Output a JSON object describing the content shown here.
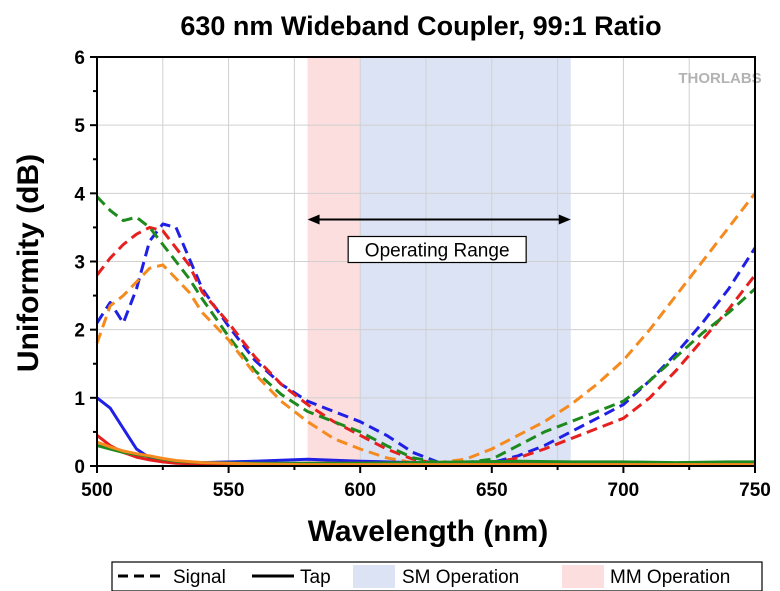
{
  "chart_data": {
    "type": "line",
    "title": "630 nm Wideband Coupler, 99:1 Ratio",
    "xlabel": "Wavelength (nm)",
    "ylabel": "Uniformity (dB)",
    "xlim": [
      500,
      750
    ],
    "ylim": [
      0,
      6
    ],
    "xticks": [
      500,
      550,
      600,
      650,
      700,
      750
    ],
    "yticks": [
      0,
      1,
      2,
      3,
      4,
      5,
      6
    ],
    "grid": true,
    "logo": "THORLABS",
    "bands": [
      {
        "name": "MM Operation",
        "range": [
          580,
          600
        ],
        "color": "#fddede"
      },
      {
        "name": "SM Operation",
        "range": [
          600,
          680
        ],
        "color": "#dbe3f5"
      }
    ],
    "annotation": {
      "text": "Operating Range",
      "from": 580,
      "to": 680,
      "y": 3.0
    },
    "legend": [
      {
        "label": "Signal",
        "style": "dashed"
      },
      {
        "label": "Tap",
        "style": "solid"
      },
      {
        "label": "SM Operation",
        "swatch": "#dbe3f5"
      },
      {
        "label": "MM Operation",
        "swatch": "#fddede"
      }
    ],
    "series": [
      {
        "role": "Signal",
        "style": "dashed",
        "color": "#1f1fe6",
        "x": [
          500,
          505,
          510,
          515,
          520,
          525,
          530,
          535,
          540,
          550,
          560,
          570,
          580,
          590,
          600,
          610,
          620,
          630,
          640,
          650,
          660,
          670,
          680,
          690,
          700,
          710,
          720,
          730,
          740,
          750
        ],
        "y": [
          2.1,
          2.4,
          2.1,
          2.6,
          3.3,
          3.55,
          3.5,
          3.05,
          2.6,
          2.05,
          1.55,
          1.2,
          0.95,
          0.8,
          0.65,
          0.45,
          0.2,
          0.05,
          0.03,
          0.05,
          0.15,
          0.3,
          0.5,
          0.7,
          0.9,
          1.25,
          1.65,
          2.1,
          2.6,
          3.2
        ]
      },
      {
        "role": "Signal",
        "style": "dashed",
        "color": "#e61f1f",
        "x": [
          500,
          505,
          510,
          515,
          520,
          525,
          530,
          535,
          540,
          550,
          560,
          570,
          580,
          590,
          600,
          610,
          620,
          630,
          640,
          650,
          660,
          670,
          680,
          690,
          700,
          710,
          720,
          730,
          740,
          750
        ],
        "y": [
          2.8,
          3.05,
          3.25,
          3.4,
          3.5,
          3.45,
          3.2,
          2.95,
          2.55,
          2.1,
          1.6,
          1.2,
          0.9,
          0.65,
          0.45,
          0.25,
          0.1,
          0.03,
          0.02,
          0.04,
          0.12,
          0.25,
          0.4,
          0.55,
          0.7,
          1.0,
          1.4,
          1.85,
          2.3,
          2.8
        ]
      },
      {
        "role": "Signal",
        "style": "dashed",
        "color": "#1e8a1e",
        "x": [
          500,
          505,
          510,
          515,
          520,
          525,
          530,
          535,
          540,
          550,
          560,
          570,
          580,
          590,
          600,
          610,
          620,
          630,
          640,
          650,
          660,
          670,
          680,
          690,
          700,
          710,
          720,
          730,
          740,
          750
        ],
        "y": [
          3.95,
          3.75,
          3.6,
          3.65,
          3.5,
          3.25,
          3.0,
          2.75,
          2.45,
          1.9,
          1.4,
          1.05,
          0.8,
          0.65,
          0.5,
          0.3,
          0.12,
          0.05,
          0.05,
          0.1,
          0.3,
          0.5,
          0.65,
          0.8,
          0.95,
          1.25,
          1.6,
          1.95,
          2.25,
          2.6
        ]
      },
      {
        "role": "Signal",
        "style": "dashed",
        "color": "#f58a1f",
        "x": [
          500,
          505,
          510,
          515,
          520,
          525,
          530,
          535,
          540,
          550,
          560,
          570,
          580,
          590,
          600,
          610,
          620,
          630,
          640,
          650,
          660,
          670,
          680,
          690,
          700,
          710,
          720,
          730,
          740,
          750
        ],
        "y": [
          1.8,
          2.35,
          2.5,
          2.7,
          2.9,
          2.95,
          2.75,
          2.55,
          2.25,
          1.85,
          1.35,
          0.95,
          0.65,
          0.4,
          0.25,
          0.12,
          0.05,
          0.05,
          0.1,
          0.25,
          0.45,
          0.65,
          0.9,
          1.2,
          1.55,
          2.0,
          2.5,
          3.0,
          3.5,
          4.0
        ]
      },
      {
        "role": "Tap",
        "style": "solid",
        "color": "#1f1fe6",
        "x": [
          500,
          505,
          510,
          515,
          520,
          525,
          530,
          540,
          560,
          580,
          600,
          620,
          640,
          660,
          680,
          700,
          720,
          740,
          750
        ],
        "y": [
          1.0,
          0.85,
          0.55,
          0.25,
          0.12,
          0.07,
          0.05,
          0.05,
          0.07,
          0.1,
          0.07,
          0.05,
          0.04,
          0.04,
          0.04,
          0.04,
          0.04,
          0.04,
          0.04
        ]
      },
      {
        "role": "Tap",
        "style": "solid",
        "color": "#e61f1f",
        "x": [
          500,
          505,
          510,
          515,
          520,
          525,
          530,
          540,
          560,
          580,
          600,
          620,
          640,
          660,
          680,
          700,
          720,
          740,
          750
        ],
        "y": [
          0.45,
          0.3,
          0.2,
          0.13,
          0.09,
          0.06,
          0.04,
          0.03,
          0.03,
          0.04,
          0.04,
          0.04,
          0.03,
          0.03,
          0.03,
          0.03,
          0.03,
          0.03,
          0.03
        ]
      },
      {
        "role": "Tap",
        "style": "solid",
        "color": "#1e8a1e",
        "x": [
          500,
          505,
          510,
          515,
          520,
          525,
          530,
          540,
          560,
          580,
          600,
          620,
          640,
          660,
          680,
          700,
          720,
          740,
          750
        ],
        "y": [
          0.3,
          0.25,
          0.2,
          0.17,
          0.14,
          0.1,
          0.07,
          0.05,
          0.04,
          0.04,
          0.04,
          0.05,
          0.06,
          0.07,
          0.06,
          0.06,
          0.05,
          0.06,
          0.06
        ]
      },
      {
        "role": "Tap",
        "style": "solid",
        "color": "#f58a1f",
        "x": [
          500,
          505,
          510,
          515,
          520,
          525,
          530,
          540,
          560,
          580,
          600,
          620,
          640,
          660,
          680,
          700,
          720,
          740,
          750
        ],
        "y": [
          0.35,
          0.28,
          0.22,
          0.18,
          0.15,
          0.11,
          0.08,
          0.05,
          0.03,
          0.02,
          0.02,
          0.02,
          0.02,
          0.02,
          0.02,
          0.02,
          0.02,
          0.02,
          0.02
        ]
      }
    ]
  }
}
